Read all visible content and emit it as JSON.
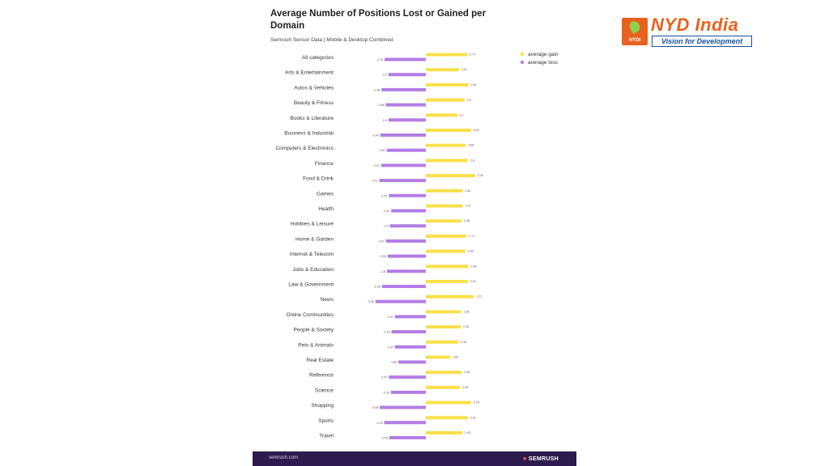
{
  "logo": {
    "name": "NYD India",
    "box_text": "NYDI",
    "tagline": "Vision for Development",
    "accent_color": "#e8621d",
    "tagline_color": "#1a4fa0"
  },
  "footer": {
    "url": "semrush.com",
    "brand": "SEMRUSH",
    "background": "#2d1b4e"
  },
  "chart_data": {
    "type": "bar",
    "orientation": "horizontal-diverging",
    "title": "Average Number of Positions Lost or Gained per Domain",
    "subtitle": "Semrush Sensor Data | Mobile & Desktop Combined",
    "legend_position": "top-right",
    "categories": [
      "All categories",
      "Arts & Entertainment",
      "Autos & Vehicles",
      "Beauty & Fitness",
      "Books & Literature",
      "Business & Industrial",
      "Computers & Electronics",
      "Finance",
      "Food & Drink",
      "Games",
      "Health",
      "Hobbies & Leisure",
      "Home & Garden",
      "Internet & Telecom",
      "Jobs & Education",
      "Law & Government",
      "News",
      "Online Communities",
      "People & Society",
      "Pets & Animals",
      "Real Estate",
      "Reference",
      "Science",
      "Shopping",
      "Sports",
      "Travel"
    ],
    "series": [
      {
        "name": "average gain",
        "color": "#f9e04b",
        "values": [
          2.77,
          2.22,
          2.84,
          2.6,
          2.1,
          3.02,
          2.66,
          2.8,
          3.29,
          2.45,
          2.47,
          2.38,
          2.71,
          2.63,
          2.84,
          2.81,
          3.21,
          2.36,
          2.33,
          2.16,
          1.63,
          2.38,
          2.28,
          3.04,
          2.81,
          2.43
        ],
        "labels": [
          "2.77",
          "2.22",
          "2.84",
          "2.6",
          "2.1",
          "3.02",
          "2.66",
          "2.8",
          "3.29",
          "2.45",
          "2.47",
          "2.38",
          "2.71",
          "2.63",
          "2.84",
          "2.81",
          "3.21",
          "2.36",
          "2.33",
          "2.16",
          "1.63",
          "2.38",
          "2.28",
          "3.04",
          "2.81",
          "2.43"
        ]
      },
      {
        "name": "average loss",
        "color": "#b37ce6",
        "values": [
          -2.76,
          -2.5,
          -2.96,
          -2.68,
          -2.5,
          -3.04,
          -2.61,
          -2.97,
          -3.11,
          -2.47,
          -2.31,
          -2.4,
          -2.67,
          -2.55,
          -2.6,
          -2.93,
          -3.36,
          -2.07,
          -2.29,
          -2.07,
          -1.83,
          -2.47,
          -2.33,
          -3.08,
          -2.78,
          -2.43
        ],
        "labels": [
          "-2.76",
          "-2.5",
          "-2.96",
          "-2.68",
          "-2.5",
          "-3.04",
          "-2.61",
          "-2.97",
          "-3.11",
          "-2.47",
          "-2.31",
          "-2.4",
          "-2.67",
          "-2.55",
          "-2.6",
          "-2.93",
          "-3.36",
          "-2.07",
          "-2.29",
          "-2.07",
          "-1.83",
          "-2.47",
          "-2.33",
          "-3.08",
          "-2.78",
          "-2.43"
        ]
      }
    ],
    "xlim": [
      -3.5,
      3.5
    ],
    "grid": false
  }
}
